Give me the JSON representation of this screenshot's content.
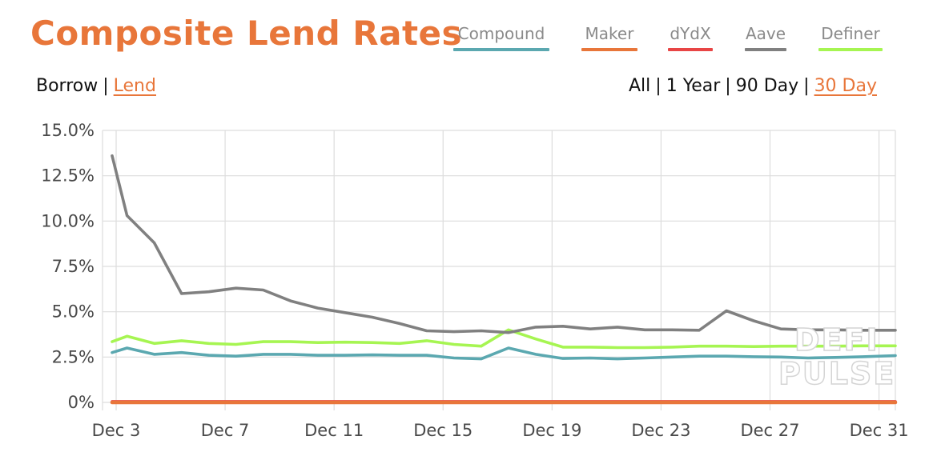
{
  "header": {
    "title": "Composite Lend Rates"
  },
  "legend": [
    {
      "label": "Compound",
      "color": "#5BA8B0"
    },
    {
      "label": "Maker",
      "color": "#E8763A"
    },
    {
      "label": "dYdX",
      "color": "#E84545"
    },
    {
      "label": "Aave",
      "color": "#808080"
    },
    {
      "label": "Definer",
      "color": "#A6F552"
    }
  ],
  "mode_toggle": {
    "borrow": "Borrow",
    "separator": "|",
    "lend": "Lend",
    "active": "Lend"
  },
  "range_toggle": {
    "all": "All",
    "one_year": "1 Year",
    "ninety_day": "90 Day",
    "thirty_day": "30 Day",
    "separator": "|",
    "active": "30 Day"
  },
  "watermark": {
    "line1": "DEFI",
    "line2": "PULSE"
  },
  "chart_data": {
    "type": "line",
    "x_tick_labels": [
      "Dec 3",
      "Dec 7",
      "Dec 11",
      "Dec 15",
      "Dec 19",
      "Dec 23",
      "Dec 27",
      "Dec 31"
    ],
    "x_tick_days": [
      3,
      7,
      11,
      15,
      19,
      23,
      27,
      31
    ],
    "y_tick_labels": [
      "0%",
      "2.5%",
      "5.0%",
      "7.5%",
      "10.0%",
      "12.5%",
      "15.0%"
    ],
    "y_tick_values": [
      0,
      2.5,
      5.0,
      7.5,
      10.0,
      12.5,
      15.0
    ],
    "xlim": [
      2.5,
      31.6
    ],
    "ylim": [
      0,
      15
    ],
    "grid": true,
    "x": [
      2.4,
      3.4,
      4.4,
      5.4,
      6.4,
      7.4,
      8.4,
      9.4,
      10.4,
      11.4,
      12.4,
      13.4,
      14.4,
      15.4,
      16.4,
      17.4,
      18.4,
      19.4,
      20.4,
      21.4,
      22.4,
      23.4,
      24.4,
      25.4,
      26.4,
      27.4,
      28.4,
      29.4,
      30.4,
      31.6
    ],
    "series": [
      {
        "name": "Compound",
        "color": "#5BA8B0",
        "values": [
          2.75,
          3.0,
          2.65,
          2.75,
          2.6,
          2.55,
          2.65,
          2.65,
          2.6,
          2.6,
          2.62,
          2.6,
          2.6,
          2.45,
          2.4,
          3.0,
          2.65,
          2.42,
          2.45,
          2.4,
          2.45,
          2.5,
          2.55,
          2.55,
          2.52,
          2.5,
          2.45,
          2.48,
          2.52,
          2.58
        ]
      },
      {
        "name": "Maker",
        "color": "#E8763A",
        "values": [
          0,
          0,
          0,
          0,
          0,
          0,
          0,
          0,
          0,
          0,
          0,
          0,
          0,
          0,
          0,
          0,
          0,
          0,
          0,
          0,
          0,
          0,
          0,
          0,
          0,
          0,
          0,
          0,
          0,
          0
        ]
      },
      {
        "name": "dYdX",
        "color": "#E84545",
        "values": [
          0.05,
          0.05,
          0.05,
          0.05,
          0.05,
          0.05,
          0.05,
          0.05,
          0.05,
          0.05,
          0.05,
          0.05,
          0.05,
          0.05,
          0.05,
          0.05,
          0.05,
          0.05,
          0.05,
          0.05,
          0.05,
          0.05,
          0.05,
          0.05,
          0.05,
          0.05,
          0.05,
          0.05,
          0.05,
          0.05
        ]
      },
      {
        "name": "Aave",
        "color": "#808080",
        "values": [
          13.6,
          10.3,
          8.8,
          6.0,
          6.1,
          6.3,
          6.2,
          5.6,
          5.2,
          4.95,
          4.7,
          4.35,
          3.95,
          3.9,
          3.95,
          3.85,
          4.15,
          4.2,
          4.05,
          4.15,
          4.0,
          4.0,
          3.98,
          5.05,
          4.5,
          4.05,
          4.0,
          4.0,
          3.98,
          3.98
        ]
      },
      {
        "name": "Definer",
        "color": "#A6F552",
        "values": [
          3.35,
          3.65,
          3.25,
          3.4,
          3.25,
          3.2,
          3.35,
          3.35,
          3.3,
          3.32,
          3.3,
          3.25,
          3.4,
          3.2,
          3.1,
          4.0,
          3.5,
          3.05,
          3.05,
          3.02,
          3.02,
          3.05,
          3.1,
          3.1,
          3.08,
          3.1,
          3.1,
          3.1,
          3.12,
          3.12
        ]
      }
    ]
  }
}
